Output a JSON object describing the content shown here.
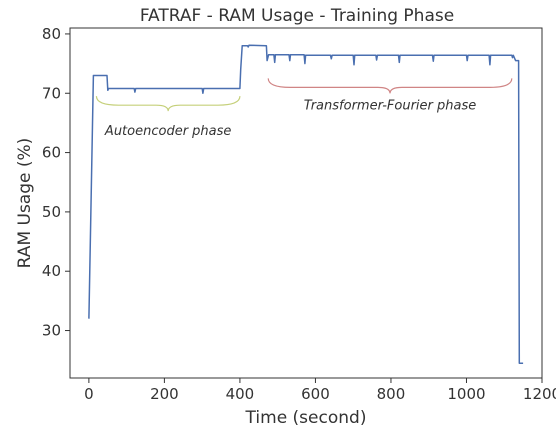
{
  "chart_data": {
    "type": "line",
    "title": "FATRAF - RAM Usage - Training Phase",
    "xlabel": "Time (second)",
    "ylabel": "RAM Usage (%)",
    "xlim": [
      -50,
      1200
    ],
    "ylim": [
      22,
      81
    ],
    "x_ticks": [
      0,
      200,
      400,
      600,
      800,
      1000,
      1200
    ],
    "y_ticks": [
      30,
      40,
      50,
      60,
      70,
      80
    ],
    "grid": false,
    "colors": {
      "line": "#4a6fb0",
      "autoencoder_brace": "#c5d07a",
      "transformer_brace": "#d08585"
    },
    "series": [
      {
        "x": [
          0,
          12,
          14,
          48,
          50,
          52,
          120,
          122,
          124,
          300,
          302,
          304,
          400,
          402,
          406,
          420,
          422,
          424,
          470,
          472,
          476,
          490,
          492,
          494,
          530,
          532,
          534,
          570,
          572,
          574,
          640,
          642,
          644,
          700,
          702,
          704,
          760,
          762,
          764,
          820,
          822,
          824,
          910,
          912,
          914,
          1000,
          1002,
          1004,
          1060,
          1062,
          1064,
          1120,
          1122,
          1124,
          1130,
          1138,
          1140,
          1142,
          1150
        ],
        "y": [
          32,
          73,
          73,
          73,
          70.5,
          70.8,
          70.8,
          70.2,
          70.8,
          70.8,
          70,
          70.8,
          70.8,
          74,
          78,
          78,
          77.8,
          78.1,
          78,
          75.5,
          76.5,
          76.5,
          75.2,
          76.5,
          76.5,
          75.5,
          76.5,
          76.5,
          75,
          76.4,
          76.4,
          75.8,
          76.4,
          76.4,
          74.8,
          76.4,
          76.4,
          75.6,
          76.4,
          76.4,
          75.2,
          76.4,
          76.4,
          75.4,
          76.4,
          76.4,
          75.5,
          76.4,
          76.4,
          74.8,
          76.4,
          76.4,
          76,
          76.4,
          75.5,
          75.5,
          24.5,
          24.5,
          24.5
        ]
      }
    ],
    "annotations": [
      {
        "label": "Autoencoder phase",
        "x_start": 20,
        "x_end": 400,
        "y": 69
      },
      {
        "label": "Transformer-Fourier phase",
        "x_start": 475,
        "x_end": 1120,
        "y": 72
      }
    ]
  }
}
